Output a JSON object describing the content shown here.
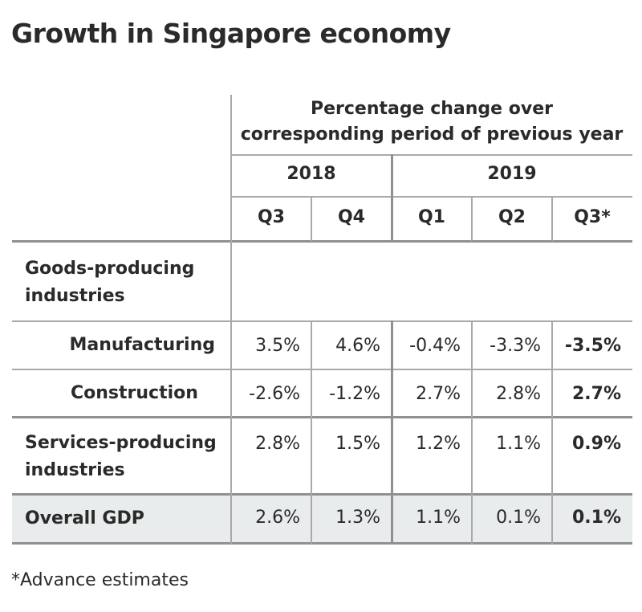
{
  "title": "Growth in Singapore economy",
  "footnote": "*Advance estimates",
  "chart_data": {
    "type": "table",
    "title": "Growth in Singapore economy",
    "header": "Percentage change over corresponding period of previous year",
    "header_line1": "Percentage change over",
    "header_line2": "corresponding period of previous year",
    "years": [
      {
        "label": "2018"
      },
      {
        "label": "2019"
      }
    ],
    "columns": [
      "Q3",
      "Q4",
      "Q1",
      "Q2",
      "Q3*"
    ],
    "group_label": "Goods-producing industries",
    "group_line1": "Goods-producing",
    "group_line2": "industries",
    "rows": [
      {
        "label": "Manufacturing",
        "values": [
          "3.5%",
          "4.6%",
          "-0.4%",
          "-3.3%",
          "-3.5%"
        ]
      },
      {
        "label": "Construction",
        "values": [
          "-2.6%",
          "-1.2%",
          "2.7%",
          "2.8%",
          "2.7%"
        ]
      },
      {
        "label": "Services-producing industries",
        "line1": "Services-producing",
        "line2": "industries",
        "values": [
          "2.8%",
          "1.5%",
          "1.2%",
          "1.1%",
          "0.9%"
        ]
      },
      {
        "label": "Overall GDP",
        "values": [
          "2.6%",
          "1.3%",
          "1.1%",
          "0.1%",
          "0.1%"
        ]
      }
    ]
  },
  "colors": {
    "highlight_row": "#e8ecec",
    "rule": "#a9a9a9"
  }
}
